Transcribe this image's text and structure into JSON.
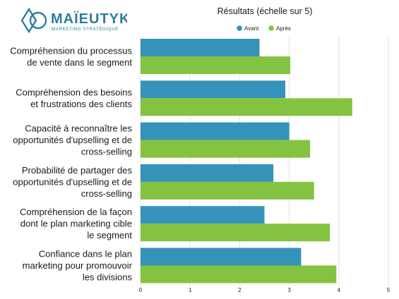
{
  "logo": {
    "name": "MAÏEUTYK",
    "tagline": "MARKETING STRATÉGIQUE",
    "color": "#2e7f9c"
  },
  "colors": {
    "avant": "#3593b9",
    "apres": "#84c341",
    "gridline": "#e2e2e2"
  },
  "chart_data": {
    "type": "bar",
    "orientation": "horizontal",
    "title": "Résultats (échelle sur 5)",
    "xlabel": "",
    "ylabel": "",
    "xlim": [
      0,
      5
    ],
    "xticks": [
      0,
      1,
      2,
      3,
      4,
      5
    ],
    "grid": true,
    "legend_position": "top",
    "categories": [
      [
        "Compréhension du processus",
        "de vente dans le segment"
      ],
      [
        "Compréhension des besoins",
        "et frustrations des clients"
      ],
      [
        "Capacité à reconnaître les",
        "opportunités d'upselling et de",
        "cross-selling"
      ],
      [
        "Probabilité de partager des",
        "opportunités d'upselling et de",
        "cross-selling"
      ],
      [
        "Compréhension de la façon",
        "dont le plan marketing cible",
        "le segment"
      ],
      [
        "Confiance dans le plan",
        "marketing pour promouvoir",
        "les divisions"
      ]
    ],
    "series": [
      {
        "name": "Avant",
        "values": [
          2.4,
          2.92,
          3.0,
          2.68,
          2.5,
          3.24
        ]
      },
      {
        "name": "Après",
        "values": [
          3.02,
          4.27,
          3.42,
          3.5,
          3.82,
          3.95
        ]
      }
    ]
  }
}
